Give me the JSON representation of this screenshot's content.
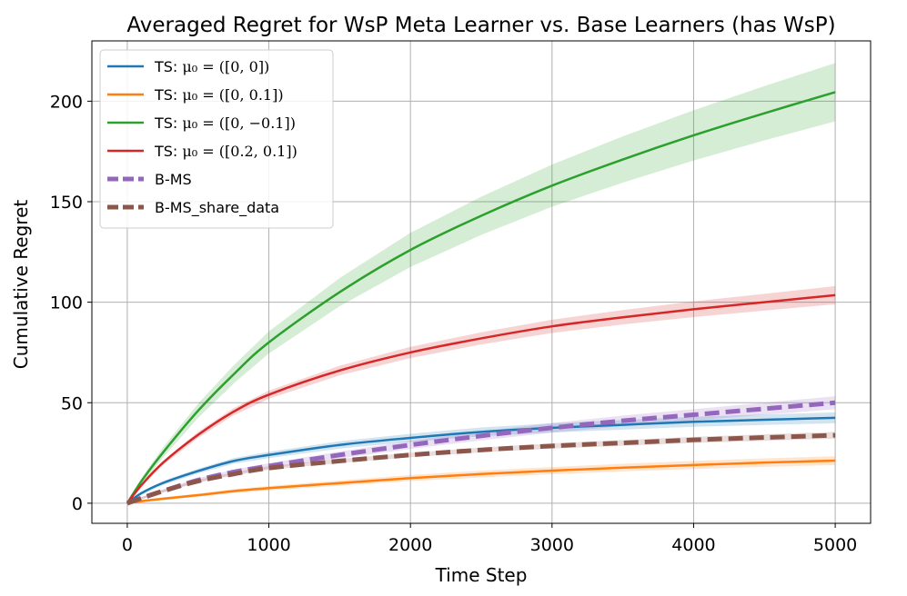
{
  "chart_data": {
    "type": "line",
    "title": "Averaged Regret for WsP Meta Learner vs. Base Learners (has WsP)",
    "xlabel": "Time Step",
    "ylabel": "Cumulative Regret",
    "xlim": [
      -250,
      5250
    ],
    "ylim": [
      -10,
      230
    ],
    "xticks": [
      0,
      1000,
      2000,
      3000,
      4000,
      5000
    ],
    "yticks": [
      0,
      50,
      100,
      150,
      200
    ],
    "grid": true,
    "legend_position": "upper-left",
    "x": [
      0,
      100,
      250,
      500,
      750,
      1000,
      1500,
      2000,
      2500,
      3000,
      3500,
      4000,
      4500,
      5000
    ],
    "series": [
      {
        "name": "TS: μ₀ = ([0, 0])",
        "legend_prefix": "TS: ",
        "legend_math": "μ₀ = ([0, 0])",
        "color": "#1f77b4",
        "dash": "solid",
        "values": [
          0,
          5,
          10,
          16,
          21,
          24,
          29,
          32.5,
          35.5,
          37.5,
          39,
          40.5,
          41.5,
          42.5
        ],
        "band": [
          0.5,
          0.8,
          1,
          1.2,
          1.4,
          1.6,
          1.8,
          2,
          2.2,
          2.3,
          2.4,
          2.5,
          2.6,
          2.7
        ]
      },
      {
        "name": "TS: μ₀ = ([0, 0.1])",
        "legend_prefix": "TS: ",
        "legend_math": "μ₀ = ([0, 0.1])",
        "color": "#ff7f0e",
        "dash": "solid",
        "values": [
          0,
          1,
          2.2,
          4,
          6,
          7.5,
          10,
          12.5,
          14.5,
          16.2,
          17.7,
          19,
          20.2,
          21.2
        ],
        "band": [
          0.5,
          0.6,
          0.7,
          0.8,
          1,
          1.1,
          1.3,
          1.5,
          1.7,
          1.8,
          1.9,
          2,
          2.1,
          2.2
        ]
      },
      {
        "name": "TS: μ₀ = ([0, −0.1])",
        "legend_prefix": "TS: ",
        "legend_math": "μ₀ = ([0, −0.1])",
        "color": "#2ca02c",
        "dash": "solid",
        "values": [
          0,
          11,
          25,
          46,
          64,
          80,
          105,
          126,
          143,
          158,
          171,
          183,
          194,
          204.5
        ],
        "band": [
          0.5,
          1.5,
          2.5,
          3.5,
          4.5,
          5.5,
          7,
          8.5,
          9.5,
          10.5,
          11.5,
          12.5,
          13.5,
          14.5
        ]
      },
      {
        "name": "TS: μ₀ = ([0.2, 0.1])",
        "legend_prefix": "TS: ",
        "legend_math": "μ₀ = ([0.2, 0.1])",
        "color": "#d62728",
        "dash": "solid",
        "values": [
          0,
          9,
          20,
          34,
          45.5,
          54,
          66,
          75,
          82,
          88,
          92.5,
          96.5,
          100,
          103.5
        ],
        "band": [
          0.5,
          0.8,
          1.1,
          1.5,
          1.8,
          2,
          2.4,
          2.8,
          3,
          3.3,
          3.6,
          3.9,
          4.2,
          4.5
        ]
      },
      {
        "name": "B-MS",
        "legend_label": "B-MS",
        "color": "#9467bd",
        "dash": "dashed",
        "values": [
          0,
          2.5,
          6,
          11.5,
          15.5,
          18.5,
          24,
          29,
          33.5,
          37.5,
          41,
          44,
          47,
          50
        ],
        "band": [
          0.5,
          0.6,
          0.8,
          1,
          1.2,
          1.4,
          1.7,
          2,
          2.2,
          2.4,
          2.6,
          2.8,
          3,
          3.2
        ]
      },
      {
        "name": "B-MS_share_data",
        "legend_label": "B-MS_share_data",
        "color": "#8c564b",
        "dash": "dashed",
        "values": [
          0,
          2.5,
          6,
          11,
          14.5,
          17.5,
          21,
          24,
          26.5,
          28.5,
          30,
          31.5,
          32.7,
          33.8
        ],
        "band": [
          0.5,
          0.5,
          0.6,
          0.7,
          0.8,
          0.9,
          1,
          1.1,
          1.2,
          1.3,
          1.4,
          1.5,
          1.6,
          1.7
        ]
      }
    ]
  }
}
